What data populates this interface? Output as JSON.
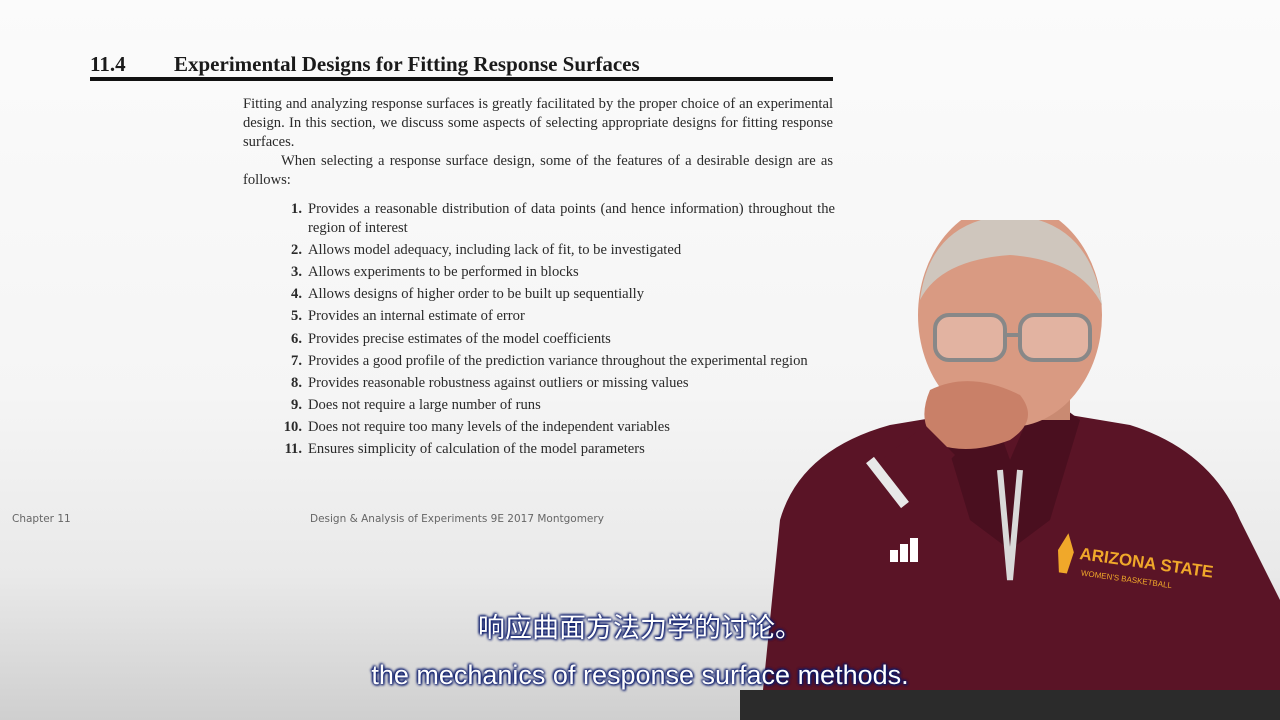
{
  "slide": {
    "section_number": "11.4",
    "section_title": "Experimental Designs for Fitting Response Surfaces",
    "paragraph1": "Fitting and analyzing response surfaces is greatly facilitated by the proper choice of an experimental design. In this section, we discuss some aspects of selecting appropriate designs for fitting response surfaces.",
    "paragraph2": "When selecting a response surface design, some of the features of a desirable design are as follows:",
    "features": [
      {
        "num": "1.",
        "text": "Provides a reasonable distribution of data points (and hence information) throughout the region of interest"
      },
      {
        "num": "2.",
        "text": "Allows model adequacy, including lack of fit, to be investigated"
      },
      {
        "num": "3.",
        "text": "Allows experiments to be performed in blocks"
      },
      {
        "num": "4.",
        "text": "Allows designs of higher order to be built up sequentially"
      },
      {
        "num": "5.",
        "text": "Provides an internal estimate of error"
      },
      {
        "num": "6.",
        "text": "Provides precise estimates of the model coefficients"
      },
      {
        "num": "7.",
        "text": "Provides a good profile of the prediction variance throughout the experimental region"
      },
      {
        "num": "8.",
        "text": "Provides reasonable robustness against outliers or missing values"
      },
      {
        "num": "9.",
        "text": "Does not require a large number of runs"
      },
      {
        "num": "10.",
        "text": "Does not require too many levels of the independent variables"
      },
      {
        "num": "11.",
        "text": "Ensures simplicity of calculation of the model parameters"
      }
    ],
    "footer_left": "Chapter 11",
    "footer_center": "Design & Analysis of Experiments 9E 2017 Montgomery"
  },
  "presenter": {
    "shirt_logo": "ARIZONA STATE",
    "shirt_sub": "WOMEN'S BASKETBALL",
    "shirt_color": "#5a1426"
  },
  "subtitles": {
    "chinese": "响应曲面方法力学的讨论。",
    "english": "the mechanics of response surface methods."
  }
}
